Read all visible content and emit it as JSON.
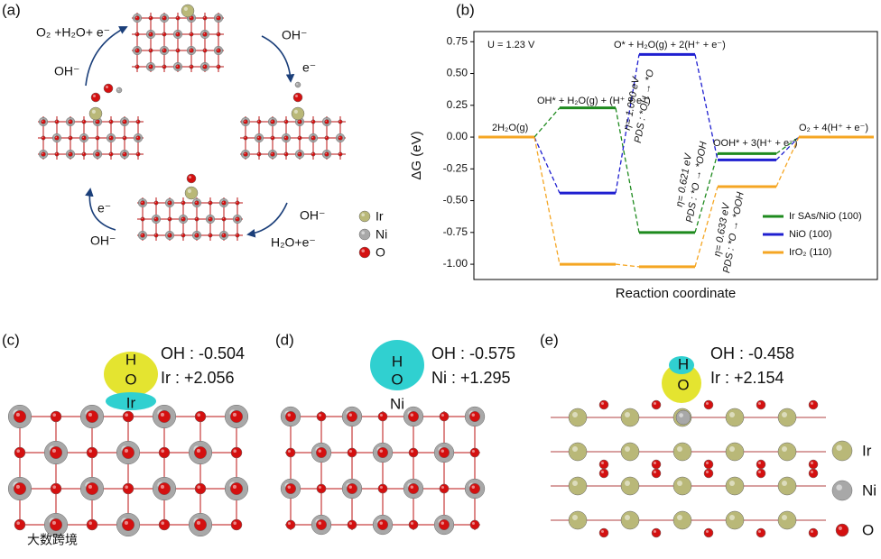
{
  "panel_labels": [
    "(a)",
    "(b)",
    "(c)",
    "(d)",
    "(e)"
  ],
  "panel_a": {
    "texts": [
      "O₂ +H₂O+ e⁻",
      "OH⁻",
      "OH⁻",
      "e⁻",
      "OH⁻",
      "H₂O+e⁻",
      "e⁻",
      "OH⁻"
    ],
    "legend": [
      "Ir",
      "Ni",
      "O"
    ]
  },
  "chart_data": {
    "type": "step",
    "ylabel": "ΔG (eV)",
    "xlabel": "Reaction coordinate",
    "categories": [
      "2H₂O(g)",
      "OH* + H₂O(g) + (H⁺ + e⁻)",
      "O* + H₂O(g) + 2(H⁺ + e⁻)",
      "OOH* + 3(H⁺ + e⁻)",
      "O₂ + 4(H⁺ + e⁻)"
    ],
    "series": [
      {
        "name": "Ir SAs/NiO (100)",
        "color": "#1e8a1e",
        "values": [
          0,
          0.23,
          -0.75,
          -0.13,
          0
        ]
      },
      {
        "name": "NiO (100)",
        "color": "#1f1fd0",
        "values": [
          0,
          -0.44,
          0.65,
          -0.18,
          0
        ]
      },
      {
        "name": "IrO₂ (110)",
        "color": "#f5a623",
        "values": [
          0,
          -1.0,
          -1.02,
          -0.39,
          0
        ]
      }
    ],
    "annotations": [
      "U = 1.23 V",
      "η= 1.090 eV",
      "PDS : *OH → *O",
      "η= 0.621 eV",
      "PDS : *O → *OOH",
      "η= 0.633 eV",
      "PDS : *O → *OOH"
    ],
    "ylim": [
      -1.12,
      0.83
    ],
    "yticks": [
      {
        "value": -1,
        "label": "-1.00"
      },
      -0.75,
      {
        "value": -0.5,
        "label": "-0.50"
      },
      -0.25,
      {
        "value": 0,
        "label": "0.00"
      },
      0.25,
      {
        "value": 0.5,
        "label": "0.50"
      },
      0.75
    ],
    "legend": "lower right"
  },
  "panel_c": {
    "atoms": [
      "H",
      "O",
      "Ir"
    ],
    "charges": [
      "OH : -0.504",
      "Ir : +2.056"
    ]
  },
  "panel_d": {
    "atoms": [
      "H",
      "O",
      "Ni"
    ],
    "charges": [
      "OH : -0.575",
      "Ni : +1.295"
    ]
  },
  "panel_e": {
    "atoms": [
      "H",
      "O"
    ],
    "charges": [
      "OH : -0.458",
      "Ir : +2.154"
    ]
  },
  "legend_bottom": [
    "Ir",
    "Ni",
    "O"
  ],
  "watermark": "大数跨境"
}
